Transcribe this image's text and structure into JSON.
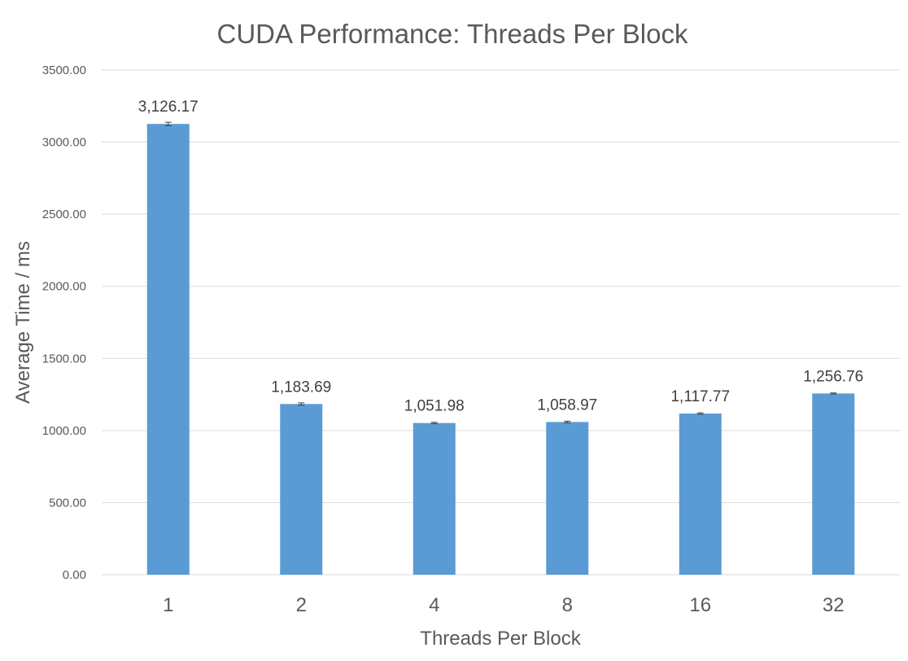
{
  "chart_data": {
    "type": "bar",
    "title": "CUDA Performance: Threads Per Block",
    "xlabel": "Threads Per Block",
    "ylabel": "Average Time / ms",
    "categories": [
      "1",
      "2",
      "4",
      "8",
      "16",
      "32"
    ],
    "values": [
      3126.17,
      1183.69,
      1051.98,
      1058.97,
      1117.77,
      1256.76
    ],
    "data_labels": [
      "3,126.17",
      "1,183.69",
      "1,051.98",
      "1,058.97",
      "1,117.77",
      "1,256.76"
    ],
    "error": [
      12,
      8,
      5,
      6,
      5,
      4
    ],
    "ylim": [
      0,
      3500
    ],
    "yticks": [
      0,
      500,
      1000,
      1500,
      2000,
      2500,
      3000,
      3500
    ],
    "ytick_labels": [
      "0.00",
      "500.00",
      "1000.00",
      "1500.00",
      "2000.00",
      "2500.00",
      "3000.00",
      "3500.00"
    ],
    "grid": true,
    "legend": "none",
    "bar_color": "#5b9bd5"
  }
}
